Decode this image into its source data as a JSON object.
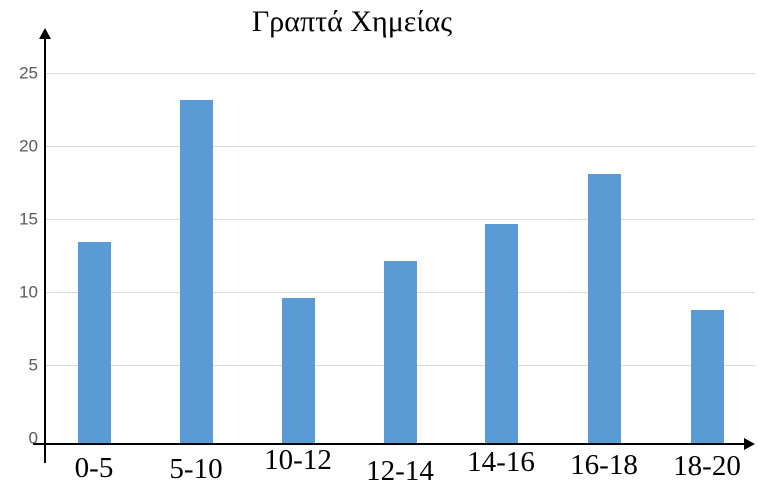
{
  "chart_data": {
    "type": "bar",
    "title": "Γραπτά Χημείας",
    "categories": [
      "0-5",
      "5-10",
      "10-12",
      "12-14",
      "14-16",
      "16-18",
      "18-20"
    ],
    "values": [
      13.6,
      23.2,
      9.8,
      12.3,
      14.8,
      18.2,
      9.0
    ],
    "xlabel": "",
    "ylabel": "",
    "y_ticks": [
      0,
      5,
      10,
      15,
      20,
      25
    ],
    "ylim": [
      0,
      27.5
    ],
    "grid": true,
    "legend_position": "none",
    "colors": {
      "bar": "#5B9BD5",
      "axis": "#000000",
      "gridline": "#D9D9D9",
      "y_tick_label": "#595959",
      "x_tick_label": "#000000",
      "title": "#000000",
      "background": "#FFFFFF"
    }
  }
}
